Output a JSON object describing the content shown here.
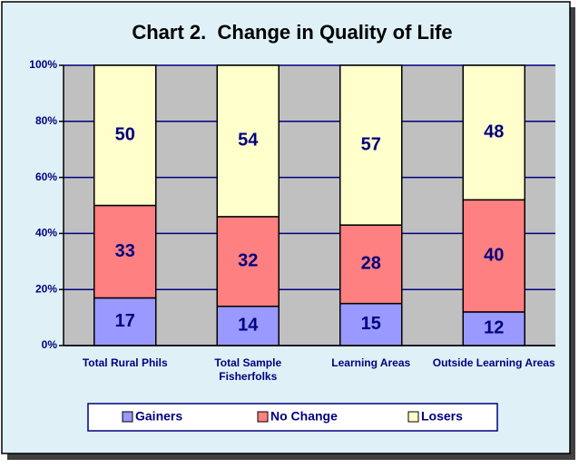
{
  "chart_data": {
    "type": "stacked_bar",
    "title": "Chart 2.  Change in Quality of Life",
    "categories": [
      "Total Rural Phils",
      "Total Sample Fisherfolks",
      "Learning Areas",
      "Outside Learning Areas"
    ],
    "series": [
      {
        "name": "Gainers",
        "color": "#9999ff",
        "values": [
          17,
          14,
          15,
          12
        ]
      },
      {
        "name": "No Change",
        "color": "#ff8080",
        "values": [
          33,
          32,
          28,
          40
        ]
      },
      {
        "name": "Losers",
        "color": "#ffffcc",
        "values": [
          50,
          54,
          57,
          48
        ]
      }
    ],
    "ylim": [
      0,
      100
    ],
    "yticks": [
      {
        "value": 0,
        "label": "0%"
      },
      {
        "value": 20,
        "label": "20%"
      },
      {
        "value": 40,
        "label": "40%"
      },
      {
        "value": 60,
        "label": "60%"
      },
      {
        "value": 80,
        "label": "80%"
      },
      {
        "value": 100,
        "label": "100%"
      }
    ],
    "grid": true,
    "legend": "bottom"
  }
}
